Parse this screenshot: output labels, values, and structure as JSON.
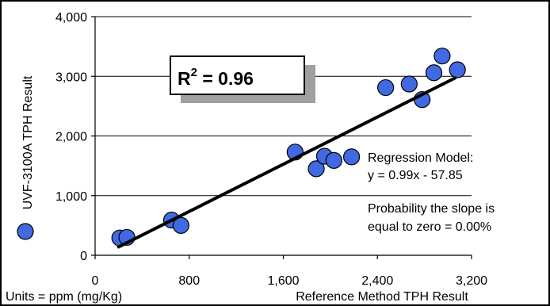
{
  "chart_data": {
    "type": "scatter",
    "xlim": [
      0,
      3200
    ],
    "ylim": [
      0,
      4000
    ],
    "x_ticks": [
      0,
      800,
      1600,
      2400,
      3200
    ],
    "x_tick_labels": [
      "0",
      "800",
      "1,600",
      "2,400",
      "3,200"
    ],
    "y_ticks": [
      0,
      1000,
      2000,
      3000,
      4000
    ],
    "y_tick_labels": [
      "0",
      "1,000",
      "2,000",
      "3,000",
      "4,000"
    ],
    "xlabel": "Reference Method TPH Result",
    "ylabel": "UVF-3100A TPH Result",
    "units_label": "Units = ppm (mg/Kg)",
    "grid": "horizontal",
    "points": [
      {
        "x": 210,
        "y": 290
      },
      {
        "x": 270,
        "y": 300
      },
      {
        "x": 650,
        "y": 590
      },
      {
        "x": 730,
        "y": 500
      },
      {
        "x": 1700,
        "y": 1730
      },
      {
        "x": 1880,
        "y": 1450
      },
      {
        "x": 1950,
        "y": 1660
      },
      {
        "x": 2030,
        "y": 1590
      },
      {
        "x": 2180,
        "y": 1650
      },
      {
        "x": 2470,
        "y": 2810
      },
      {
        "x": 2670,
        "y": 2870
      },
      {
        "x": 2780,
        "y": 2610
      },
      {
        "x": 2880,
        "y": 3060
      },
      {
        "x": 2950,
        "y": 3340
      },
      {
        "x": 3080,
        "y": 3110
      }
    ],
    "regression": {
      "slope": 0.99,
      "intercept": -57.85,
      "x_range": [
        200,
        3060
      ]
    },
    "r2_label": "R",
    "r2_exponent": "2",
    "r2_value": " = 0.96",
    "annotations": {
      "model_title": "Regression Model:",
      "model_equation": "y = 0.99x - 57.85",
      "prob_line1": "Probability the slope is",
      "prob_line2": "equal to zero = 0.00%"
    },
    "colors": {
      "marker": "#4169e1",
      "line": "#000000",
      "grid": "#000000",
      "shadow": "#a0a0a0"
    }
  }
}
